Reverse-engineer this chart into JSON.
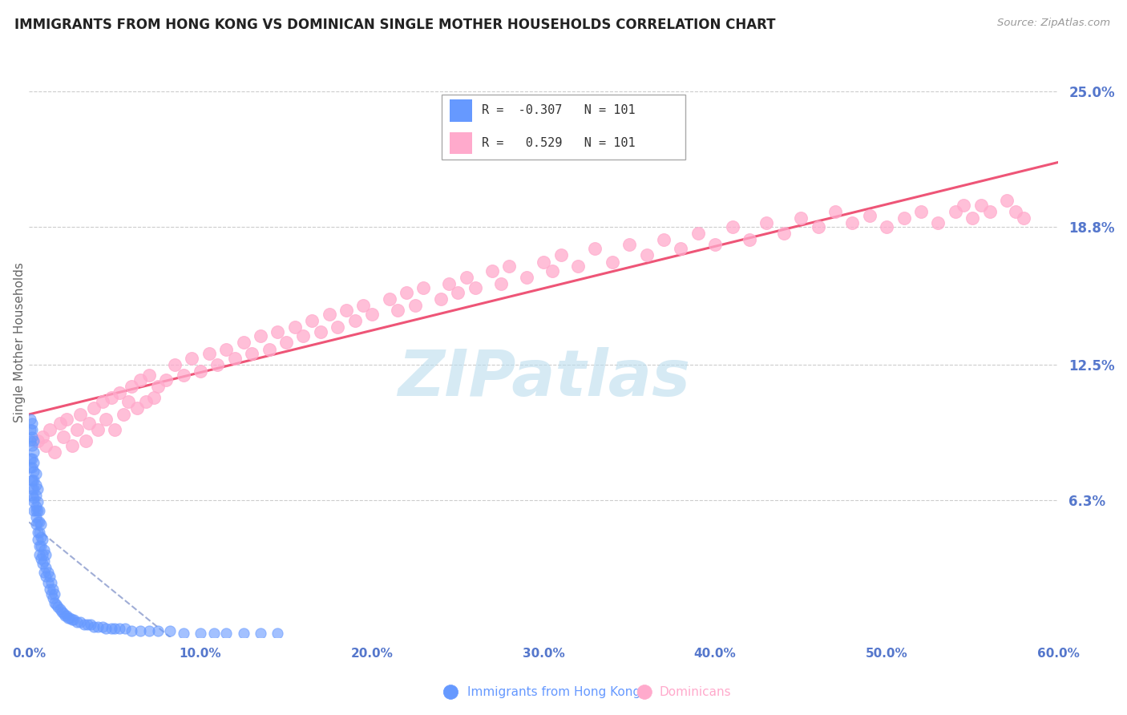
{
  "title": "IMMIGRANTS FROM HONG KONG VS DOMINICAN SINGLE MOTHER HOUSEHOLDS CORRELATION CHART",
  "source": "Source: ZipAtlas.com",
  "ylabel": "Single Mother Households",
  "legend_label_1": "Immigrants from Hong Kong",
  "legend_label_2": "Dominicans",
  "r1": "-0.307",
  "r2": " 0.529",
  "n1": 101,
  "n2": 101,
  "xlim": [
    0.0,
    0.6
  ],
  "ylim": [
    0.0,
    0.27
  ],
  "yticks": [
    0.0,
    0.063,
    0.125,
    0.188,
    0.25
  ],
  "ytick_labels": [
    "",
    "6.3%",
    "12.5%",
    "18.8%",
    "25.0%"
  ],
  "xticks": [
    0.0,
    0.1,
    0.2,
    0.3,
    0.4,
    0.5,
    0.6
  ],
  "xtick_labels": [
    "0.0%",
    "10.0%",
    "20.0%",
    "30.0%",
    "40.0%",
    "50.0%",
    "60.0%"
  ],
  "color_hk": "#6699ff",
  "color_dom": "#ffaacc",
  "color_line_hk": "#aaccee",
  "color_line_dom": "#ee5577",
  "color_grid": "#cccccc",
  "color_title": "#222222",
  "color_ticks": "#5577cc",
  "color_source": "#999999",
  "watermark": "ZIPatlas",
  "watermark_color": "#bbddee",
  "figsize": [
    14.06,
    8.92
  ],
  "dpi": 100,
  "hk_x": [
    0.001,
    0.001,
    0.001,
    0.001,
    0.001,
    0.002,
    0.002,
    0.002,
    0.002,
    0.002,
    0.002,
    0.002,
    0.002,
    0.002,
    0.002,
    0.003,
    0.003,
    0.003,
    0.003,
    0.003,
    0.003,
    0.003,
    0.003,
    0.003,
    0.004,
    0.004,
    0.004,
    0.004,
    0.004,
    0.004,
    0.004,
    0.005,
    0.005,
    0.005,
    0.005,
    0.005,
    0.005,
    0.006,
    0.006,
    0.006,
    0.006,
    0.006,
    0.007,
    0.007,
    0.007,
    0.007,
    0.008,
    0.008,
    0.008,
    0.009,
    0.009,
    0.009,
    0.01,
    0.01,
    0.01,
    0.011,
    0.011,
    0.012,
    0.012,
    0.013,
    0.013,
    0.014,
    0.014,
    0.015,
    0.015,
    0.016,
    0.017,
    0.018,
    0.019,
    0.02,
    0.021,
    0.022,
    0.023,
    0.024,
    0.025,
    0.026,
    0.028,
    0.03,
    0.032,
    0.034,
    0.036,
    0.038,
    0.04,
    0.043,
    0.045,
    0.048,
    0.05,
    0.053,
    0.056,
    0.06,
    0.065,
    0.07,
    0.075,
    0.082,
    0.09,
    0.1,
    0.108,
    0.115,
    0.125,
    0.135,
    0.145
  ],
  "hk_y": [
    0.078,
    0.082,
    0.09,
    0.095,
    0.1,
    0.068,
    0.072,
    0.078,
    0.082,
    0.088,
    0.092,
    0.095,
    0.098,
    0.072,
    0.065,
    0.062,
    0.068,
    0.072,
    0.076,
    0.08,
    0.085,
    0.09,
    0.058,
    0.064,
    0.055,
    0.06,
    0.065,
    0.07,
    0.075,
    0.052,
    0.058,
    0.048,
    0.053,
    0.058,
    0.062,
    0.068,
    0.045,
    0.042,
    0.048,
    0.053,
    0.058,
    0.038,
    0.036,
    0.042,
    0.046,
    0.052,
    0.034,
    0.038,
    0.045,
    0.03,
    0.035,
    0.04,
    0.028,
    0.032,
    0.038,
    0.025,
    0.03,
    0.022,
    0.028,
    0.02,
    0.025,
    0.018,
    0.022,
    0.016,
    0.02,
    0.015,
    0.014,
    0.013,
    0.012,
    0.011,
    0.01,
    0.01,
    0.009,
    0.009,
    0.008,
    0.008,
    0.007,
    0.007,
    0.006,
    0.006,
    0.006,
    0.005,
    0.005,
    0.005,
    0.004,
    0.004,
    0.004,
    0.004,
    0.004,
    0.003,
    0.003,
    0.003,
    0.003,
    0.003,
    0.002,
    0.002,
    0.002,
    0.002,
    0.002,
    0.002,
    0.002
  ],
  "dom_x": [
    0.005,
    0.008,
    0.01,
    0.012,
    0.015,
    0.018,
    0.02,
    0.022,
    0.025,
    0.028,
    0.03,
    0.033,
    0.035,
    0.038,
    0.04,
    0.043,
    0.045,
    0.048,
    0.05,
    0.053,
    0.055,
    0.058,
    0.06,
    0.063,
    0.065,
    0.068,
    0.07,
    0.073,
    0.075,
    0.08,
    0.085,
    0.09,
    0.095,
    0.1,
    0.105,
    0.11,
    0.115,
    0.12,
    0.125,
    0.13,
    0.135,
    0.14,
    0.145,
    0.15,
    0.155,
    0.16,
    0.165,
    0.17,
    0.175,
    0.18,
    0.185,
    0.19,
    0.195,
    0.2,
    0.21,
    0.215,
    0.22,
    0.225,
    0.23,
    0.24,
    0.245,
    0.25,
    0.255,
    0.26,
    0.27,
    0.275,
    0.28,
    0.29,
    0.3,
    0.305,
    0.31,
    0.32,
    0.33,
    0.34,
    0.35,
    0.36,
    0.37,
    0.38,
    0.39,
    0.4,
    0.41,
    0.42,
    0.43,
    0.44,
    0.45,
    0.46,
    0.47,
    0.48,
    0.49,
    0.5,
    0.51,
    0.52,
    0.53,
    0.54,
    0.545,
    0.55,
    0.555,
    0.56,
    0.57,
    0.575,
    0.58
  ],
  "dom_y": [
    0.09,
    0.092,
    0.088,
    0.095,
    0.085,
    0.098,
    0.092,
    0.1,
    0.088,
    0.095,
    0.102,
    0.09,
    0.098,
    0.105,
    0.095,
    0.108,
    0.1,
    0.11,
    0.095,
    0.112,
    0.102,
    0.108,
    0.115,
    0.105,
    0.118,
    0.108,
    0.12,
    0.11,
    0.115,
    0.118,
    0.125,
    0.12,
    0.128,
    0.122,
    0.13,
    0.125,
    0.132,
    0.128,
    0.135,
    0.13,
    0.138,
    0.132,
    0.14,
    0.135,
    0.142,
    0.138,
    0.145,
    0.14,
    0.148,
    0.142,
    0.15,
    0.145,
    0.152,
    0.148,
    0.155,
    0.15,
    0.158,
    0.152,
    0.16,
    0.155,
    0.162,
    0.158,
    0.165,
    0.16,
    0.168,
    0.162,
    0.17,
    0.165,
    0.172,
    0.168,
    0.175,
    0.17,
    0.178,
    0.172,
    0.18,
    0.175,
    0.182,
    0.178,
    0.185,
    0.18,
    0.188,
    0.182,
    0.19,
    0.185,
    0.192,
    0.188,
    0.195,
    0.19,
    0.193,
    0.188,
    0.192,
    0.195,
    0.19,
    0.195,
    0.198,
    0.192,
    0.198,
    0.195,
    0.2,
    0.195,
    0.192
  ]
}
